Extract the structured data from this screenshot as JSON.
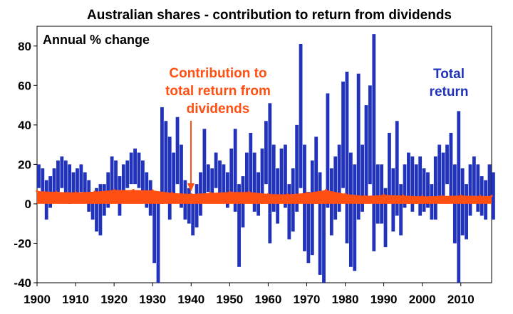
{
  "chart_data": {
    "type": "area",
    "title": "Australian shares - contribution to return from dividends",
    "ylabel": "Annual % change",
    "xlabel": "",
    "x_range": [
      1900,
      2018
    ],
    "ylim": [
      -40,
      90
    ],
    "y_ticks": [
      -40,
      -20,
      0,
      20,
      40,
      60,
      80
    ],
    "x_ticks": [
      1900,
      1910,
      1920,
      1930,
      1940,
      1950,
      1960,
      1970,
      1980,
      1990,
      2000,
      2010
    ],
    "grid": false,
    "annotations": {
      "dividends": [
        "Contribution to",
        "total return from",
        "dividends"
      ],
      "total": [
        "Total",
        "return"
      ]
    },
    "series": [
      {
        "name": "Total return",
        "color": "#2233bb",
        "x": [
          1900,
          1901,
          1902,
          1903,
          1904,
          1905,
          1906,
          1907,
          1908,
          1909,
          1910,
          1911,
          1912,
          1913,
          1914,
          1915,
          1916,
          1917,
          1918,
          1919,
          1920,
          1921,
          1922,
          1923,
          1924,
          1925,
          1926,
          1927,
          1928,
          1929,
          1930,
          1931,
          1932,
          1933,
          1934,
          1935,
          1936,
          1937,
          1938,
          1939,
          1940,
          1941,
          1942,
          1943,
          1944,
          1945,
          1946,
          1947,
          1948,
          1949,
          1950,
          1951,
          1952,
          1953,
          1954,
          1955,
          1956,
          1957,
          1958,
          1959,
          1960,
          1961,
          1962,
          1963,
          1964,
          1965,
          1966,
          1967,
          1968,
          1969,
          1970,
          1971,
          1972,
          1973,
          1974,
          1975,
          1976,
          1977,
          1978,
          1979,
          1980,
          1981,
          1982,
          1983,
          1984,
          1985,
          1986,
          1987,
          1988,
          1989,
          1990,
          1991,
          1992,
          1993,
          1994,
          1995,
          1996,
          1997,
          1998,
          1999,
          2000,
          2001,
          2002,
          2003,
          2004,
          2005,
          2006,
          2007,
          2008,
          2009,
          2010,
          2011,
          2012,
          2013,
          2014,
          2015,
          2016,
          2017,
          2018
        ],
        "high": [
          20,
          18,
          12,
          14,
          18,
          22,
          24,
          22,
          20,
          16,
          18,
          20,
          16,
          12,
          6,
          8,
          10,
          10,
          16,
          24,
          22,
          14,
          20,
          22,
          26,
          28,
          26,
          22,
          16,
          12,
          4,
          6,
          49,
          42,
          34,
          26,
          44,
          30,
          12,
          8,
          4,
          10,
          16,
          38,
          20,
          18,
          26,
          22,
          20,
          16,
          28,
          38,
          10,
          14,
          26,
          36,
          26,
          16,
          28,
          42,
          51,
          30,
          18,
          28,
          30,
          10,
          18,
          40,
          81,
          30,
          6,
          22,
          34,
          16,
          4,
          56,
          18,
          24,
          30,
          62,
          67,
          26,
          20,
          66,
          30,
          50,
          60,
          86,
          20,
          20,
          8,
          36,
          18,
          42,
          10,
          20,
          26,
          24,
          20,
          24,
          18,
          16,
          10,
          24,
          30,
          26,
          30,
          36,
          20,
          47,
          18,
          10,
          20,
          24,
          20,
          14,
          12,
          20,
          16
        ],
        "low": [
          8,
          4,
          -8,
          -2,
          4,
          6,
          8,
          4,
          0,
          2,
          4,
          6,
          2,
          -4,
          -8,
          -14,
          -16,
          -6,
          -2,
          6,
          2,
          -6,
          4,
          8,
          10,
          10,
          8,
          4,
          -2,
          -6,
          -30,
          -40,
          0,
          2,
          -8,
          4,
          10,
          -2,
          -8,
          -10,
          -16,
          -12,
          -6,
          4,
          6,
          2,
          8,
          4,
          2,
          -2,
          6,
          -4,
          -32,
          -12,
          4,
          4,
          -4,
          -6,
          0,
          10,
          -20,
          -4,
          -10,
          4,
          -2,
          -18,
          -14,
          -4,
          8,
          -24,
          -30,
          -26,
          0,
          -36,
          -40,
          -2,
          -16,
          -8,
          -4,
          8,
          -20,
          -32,
          -34,
          -8,
          -4,
          4,
          10,
          -24,
          -10,
          -10,
          -22,
          4,
          -14,
          -6,
          -16,
          -2,
          0,
          -4,
          0,
          -6,
          -4,
          -2,
          -8,
          -8,
          4,
          4,
          10,
          4,
          -20,
          -40,
          -16,
          -18,
          -6,
          4,
          -4,
          -6,
          -8,
          2,
          -8
        ]
      },
      {
        "name": "Contribution to total return from dividends",
        "color": "#ff4f12",
        "x": [
          1900,
          1905,
          1910,
          1915,
          1920,
          1925,
          1930,
          1935,
          1940,
          1945,
          1950,
          1955,
          1960,
          1965,
          1970,
          1975,
          1980,
          1985,
          1990,
          1995,
          2000,
          2005,
          2010,
          2015,
          2018
        ],
        "values": [
          6.5,
          6.0,
          5.8,
          6.2,
          7.0,
          7.0,
          6.8,
          5.5,
          5.0,
          5.5,
          6.0,
          6.0,
          5.0,
          4.8,
          5.5,
          7.0,
          5.0,
          4.0,
          4.5,
          4.2,
          3.8,
          4.0,
          4.2,
          4.0,
          4.0
        ]
      }
    ]
  }
}
